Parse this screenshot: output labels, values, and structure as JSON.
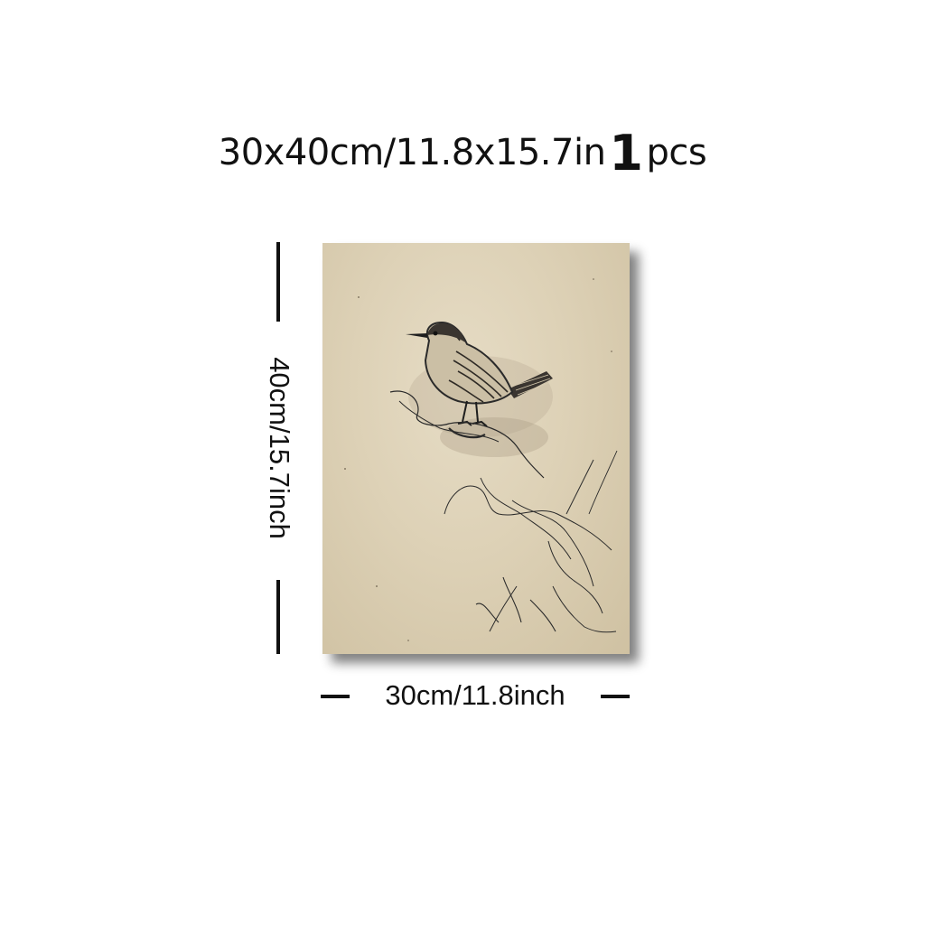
{
  "header": {
    "size_text": "30x40cm/11.8x15.7in",
    "quantity": "1",
    "unit": "pcs"
  },
  "dimensions": {
    "height_label": "40cm/15.7inch",
    "width_label": "30cm/11.8inch"
  },
  "artwork": {
    "subject": "wren-bird-sketch",
    "background_color": "#ddd1b6",
    "ink_color": "#2a2a2a"
  }
}
